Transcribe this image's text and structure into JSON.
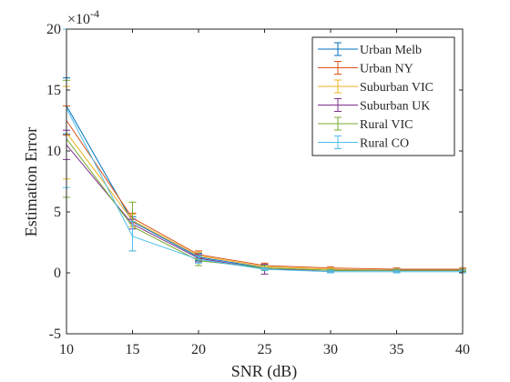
{
  "chart_data": {
    "type": "line",
    "xlabel": "SNR (dB)",
    "ylabel": "Estimation Error",
    "y_exponent": "×10",
    "y_exponent_power": "-4",
    "xlim": [
      10,
      40
    ],
    "ylim": [
      -5,
      20
    ],
    "xticks": [
      10,
      15,
      20,
      25,
      30,
      35,
      40
    ],
    "yticks": [
      -5,
      0,
      5,
      10,
      15,
      20
    ],
    "grid": false,
    "legend_position": "top-right",
    "x": [
      10,
      15,
      20,
      25,
      30,
      35,
      40
    ],
    "series": [
      {
        "name": "Urban Melb",
        "color": "#0072BD",
        "values": [
          13.7,
          4.2,
          1.3,
          0.4,
          0.2,
          0.2,
          0.2
        ],
        "errors": [
          2.3,
          0.4,
          0.3,
          0.2,
          0.1,
          0.1,
          0.1
        ]
      },
      {
        "name": "Urban NY",
        "color": "#D95319",
        "values": [
          12.5,
          4.5,
          1.5,
          0.6,
          0.4,
          0.3,
          0.3
        ],
        "errors": [
          1.2,
          0.4,
          0.3,
          0.2,
          0.1,
          0.1,
          0.1
        ]
      },
      {
        "name": "Suburban VIC",
        "color": "#EDB120",
        "values": [
          11.5,
          4.3,
          1.4,
          0.5,
          0.3,
          0.2,
          0.2
        ],
        "errors": [
          3.8,
          0.5,
          0.3,
          0.2,
          0.1,
          0.1,
          0.1
        ]
      },
      {
        "name": "Suburban UK",
        "color": "#7E2F8E",
        "values": [
          10.5,
          4.0,
          1.2,
          0.3,
          0.2,
          0.2,
          0.2
        ],
        "errors": [
          1.2,
          0.4,
          0.3,
          0.4,
          0.1,
          0.1,
          0.1
        ]
      },
      {
        "name": "Rural VIC",
        "color": "#77AC30",
        "values": [
          11.0,
          3.8,
          1.0,
          0.4,
          0.2,
          0.2,
          0.2
        ],
        "errors": [
          4.8,
          2.0,
          0.4,
          0.2,
          0.1,
          0.1,
          0.1
        ]
      },
      {
        "name": "Rural CO",
        "color": "#4DBEEE",
        "values": [
          13.5,
          3.0,
          1.1,
          0.3,
          0.1,
          0.1,
          0.1
        ],
        "errors": [
          6.5,
          1.2,
          0.3,
          0.1,
          0.1,
          0.1,
          0.1
        ]
      }
    ]
  }
}
